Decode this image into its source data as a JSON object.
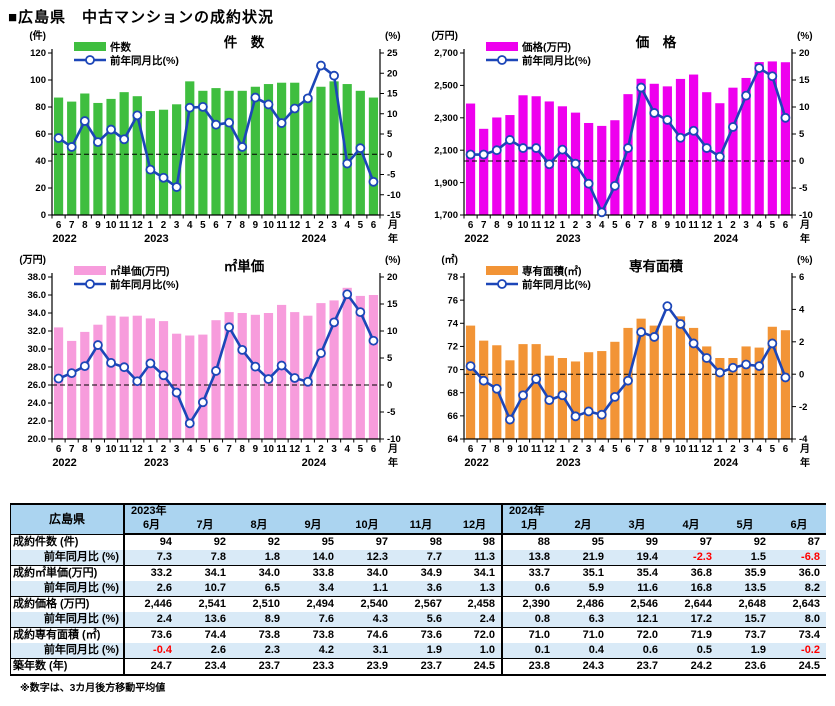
{
  "page_title": "■広島県　中古マンションの成約状況",
  "axis": {
    "months": [
      "6",
      "7",
      "8",
      "9",
      "10",
      "11",
      "12",
      "1",
      "2",
      "3",
      "4",
      "5",
      "6",
      "7",
      "8",
      "9",
      "10",
      "11",
      "12",
      "1",
      "2",
      "3",
      "4",
      "5",
      "6"
    ],
    "year_markers": [
      {
        "label": "2022",
        "index": 0
      },
      {
        "label": "2023",
        "index": 7
      },
      {
        "label": "2024",
        "index": 19
      }
    ],
    "month_suffix": "月",
    "year_suffix": "年"
  },
  "line_color": "#1c46b8",
  "chart_data": [
    {
      "type": "bar+line",
      "id": "kensu",
      "title": "件　数",
      "unit_left": "(件)",
      "unit_right": "(%)",
      "legend_bar": "件数",
      "legend_line": "前年同月比(%)",
      "bar_color": "#3fbe3f",
      "left_axis": {
        "min": 0,
        "max": 120,
        "step": 20,
        "format": "int"
      },
      "right_axis": {
        "min": -15,
        "max": 25,
        "step": 5
      },
      "bars": [
        87,
        84,
        90,
        83,
        86,
        91,
        88,
        77,
        78,
        82,
        99,
        92,
        94,
        92,
        92,
        95,
        97,
        98,
        98,
        88,
        95,
        99,
        97,
        92,
        87
      ],
      "line": [
        4.0,
        1.8,
        8.2,
        3.0,
        6.1,
        3.7,
        9.6,
        -3.8,
        -5.8,
        -8.1,
        11.5,
        11.7,
        7.3,
        7.8,
        1.8,
        14.0,
        12.3,
        7.7,
        11.3,
        13.8,
        21.9,
        19.4,
        -2.3,
        1.5,
        -6.8
      ]
    },
    {
      "type": "bar+line",
      "id": "kakaku",
      "title": "価　格",
      "unit_left": "(万円)",
      "unit_right": "(%)",
      "legend_bar": "価格(万円)",
      "legend_line": "前年同月比(%)",
      "bar_color": "#ee00ee",
      "left_axis": {
        "min": 1700,
        "max": 2700,
        "step": 200,
        "format": "comma"
      },
      "right_axis": {
        "min": -10,
        "max": 20,
        "step": 5
      },
      "bars": [
        2388,
        2232,
        2302,
        2317,
        2439,
        2433,
        2401,
        2371,
        2332,
        2268,
        2250,
        2285,
        2446,
        2541,
        2510,
        2494,
        2540,
        2567,
        2458,
        2390,
        2486,
        2546,
        2644,
        2648,
        2643
      ],
      "line": [
        1.2,
        1.2,
        2.0,
        3.9,
        2.4,
        2.4,
        -0.6,
        2.1,
        -0.5,
        -4.2,
        -9.5,
        -4.6,
        2.4,
        13.6,
        8.9,
        7.6,
        4.3,
        5.6,
        2.4,
        0.8,
        6.3,
        12.1,
        17.2,
        15.7,
        8.0
      ]
    },
    {
      "type": "bar+line",
      "id": "tanka",
      "title": "㎡単価",
      "unit_left": "(万円)",
      "unit_right": "(%)",
      "legend_bar": "㎡単価(万円)",
      "legend_line": "前年同月比(%)",
      "bar_color": "#f79cdc",
      "left_axis": {
        "min": 20,
        "max": 38,
        "step": 2,
        "format": "dec1"
      },
      "right_axis": {
        "min": -10,
        "max": 20,
        "step": 5
      },
      "bars": [
        32.4,
        30.9,
        31.9,
        32.7,
        33.7,
        33.6,
        33.7,
        33.4,
        33.1,
        31.7,
        31.5,
        31.6,
        33.2,
        34.1,
        34.0,
        33.8,
        34.0,
        34.9,
        34.1,
        33.7,
        35.1,
        35.4,
        36.8,
        35.9,
        36.0
      ],
      "line": [
        1.2,
        2.2,
        3.5,
        7.4,
        4.1,
        3.3,
        0.7,
        4.0,
        1.8,
        -1.4,
        -7.1,
        -3.2,
        2.6,
        10.7,
        6.5,
        3.4,
        1.1,
        3.6,
        1.3,
        0.6,
        5.9,
        11.6,
        16.8,
        13.5,
        8.2
      ]
    },
    {
      "type": "bar+line",
      "id": "menseki",
      "title": "専有面積",
      "unit_left": "(㎡)",
      "unit_right": "(%)",
      "legend_bar": "専有面積(㎡)",
      "legend_line": "前年同月比(%)",
      "bar_color": "#f29436",
      "left_axis": {
        "min": 64,
        "max": 78,
        "step": 2,
        "format": "int"
      },
      "right_axis": {
        "min": -4,
        "max": 6,
        "step": 2
      },
      "bars": [
        73.8,
        72.5,
        72.1,
        70.8,
        72.2,
        72.2,
        71.2,
        71.0,
        70.7,
        71.5,
        71.6,
        72.4,
        73.6,
        74.4,
        73.8,
        73.8,
        74.6,
        73.6,
        72.0,
        71.0,
        71.0,
        72.0,
        71.9,
        73.7,
        73.4
      ],
      "line": [
        0.5,
        -0.4,
        -0.9,
        -2.8,
        -1.3,
        -0.3,
        -1.6,
        -1.3,
        -2.6,
        -2.3,
        -2.5,
        -1.4,
        -0.4,
        2.6,
        2.3,
        4.2,
        3.1,
        1.9,
        1.0,
        0.1,
        0.4,
        0.6,
        0.5,
        1.9,
        -0.2
      ]
    }
  ],
  "table": {
    "corner": "広島県",
    "year_groups": [
      {
        "label": "2023年",
        "span": 7
      },
      {
        "label": "2024年",
        "span": 6
      }
    ],
    "months": [
      "6月",
      "7月",
      "8月",
      "9月",
      "10月",
      "11月",
      "12月",
      "1月",
      "2月",
      "3月",
      "4月",
      "5月",
      "6月"
    ],
    "rows": [
      {
        "label": "成約件数 (件)",
        "indent": false,
        "shaded": false,
        "values": [
          "94",
          "92",
          "92",
          "95",
          "97",
          "98",
          "98",
          "88",
          "95",
          "99",
          "97",
          "92",
          "87"
        ]
      },
      {
        "label": "前年同月比 (%)",
        "indent": true,
        "shaded": true,
        "values": [
          "7.3",
          "7.8",
          "1.8",
          "14.0",
          "12.3",
          "7.7",
          "11.3",
          "13.8",
          "21.9",
          "19.4",
          "-2.3",
          "1.5",
          "-6.8"
        ]
      },
      {
        "label": "成約㎡単価(万円)",
        "indent": false,
        "shaded": false,
        "values": [
          "33.2",
          "34.1",
          "34.0",
          "33.8",
          "34.0",
          "34.9",
          "34.1",
          "33.7",
          "35.1",
          "35.4",
          "36.8",
          "35.9",
          "36.0"
        ]
      },
      {
        "label": "前年同月比 (%)",
        "indent": true,
        "shaded": true,
        "values": [
          "2.6",
          "10.7",
          "6.5",
          "3.4",
          "1.1",
          "3.6",
          "1.3",
          "0.6",
          "5.9",
          "11.6",
          "16.8",
          "13.5",
          "8.2"
        ]
      },
      {
        "label": "成約価格 (万円)",
        "indent": false,
        "shaded": false,
        "values": [
          "2,446",
          "2,541",
          "2,510",
          "2,494",
          "2,540",
          "2,567",
          "2,458",
          "2,390",
          "2,486",
          "2,546",
          "2,644",
          "2,648",
          "2,643"
        ]
      },
      {
        "label": "前年同月比 (%)",
        "indent": true,
        "shaded": true,
        "values": [
          "2.4",
          "13.6",
          "8.9",
          "7.6",
          "4.3",
          "5.6",
          "2.4",
          "0.8",
          "6.3",
          "12.1",
          "17.2",
          "15.7",
          "8.0"
        ]
      },
      {
        "label": "成約専有面積 (㎡)",
        "indent": false,
        "shaded": false,
        "values": [
          "73.6",
          "74.4",
          "73.8",
          "73.8",
          "74.6",
          "73.6",
          "72.0",
          "71.0",
          "71.0",
          "72.0",
          "71.9",
          "73.7",
          "73.4"
        ]
      },
      {
        "label": "前年同月比 (%)",
        "indent": true,
        "shaded": true,
        "values": [
          "-0.4",
          "2.6",
          "2.3",
          "4.2",
          "3.1",
          "1.9",
          "1.0",
          "0.1",
          "0.4",
          "0.6",
          "0.5",
          "1.9",
          "-0.2"
        ]
      },
      {
        "label": "築年数 (年)",
        "indent": false,
        "shaded": false,
        "values": [
          "24.7",
          "23.4",
          "23.7",
          "23.3",
          "23.9",
          "23.7",
          "24.5",
          "23.8",
          "24.3",
          "23.7",
          "24.2",
          "23.6",
          "24.5"
        ]
      }
    ]
  },
  "footnote": "※数字は、3カ月後方移動平均値"
}
